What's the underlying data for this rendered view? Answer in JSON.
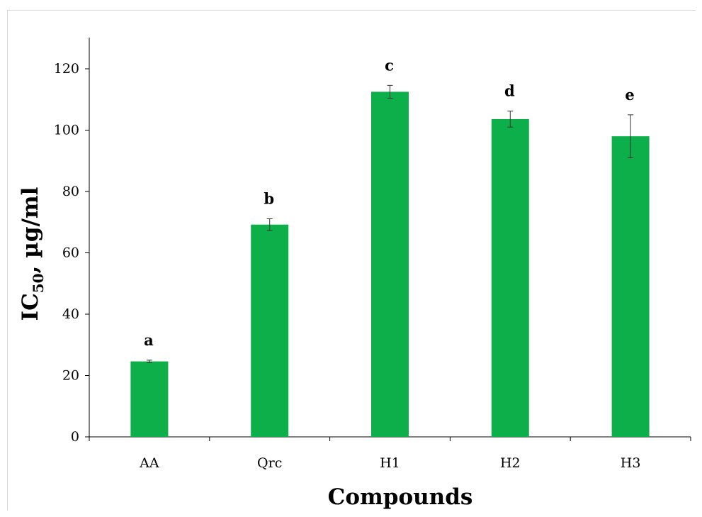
{
  "chart_data": {
    "type": "bar",
    "categories": [
      "AA",
      "Qrc",
      "H1",
      "H2",
      "H3"
    ],
    "values": [
      24.6,
      69.2,
      112.5,
      103.6,
      98.0
    ],
    "errors": [
      0.4,
      1.9,
      2.1,
      2.6,
      7.0
    ],
    "significance_labels": [
      "a",
      "b",
      "c",
      "d",
      "e"
    ],
    "xlabel": "Compounds",
    "ylabel": {
      "main": "IC",
      "subscript": "50",
      "rest": ", µg/ml"
    },
    "ylim": [
      0,
      120
    ],
    "yticks": [
      0,
      20,
      40,
      60,
      80,
      100,
      120
    ],
    "grid": false,
    "legend": "none",
    "bar_color": "#0DAF4B",
    "error_color": "#333333"
  }
}
